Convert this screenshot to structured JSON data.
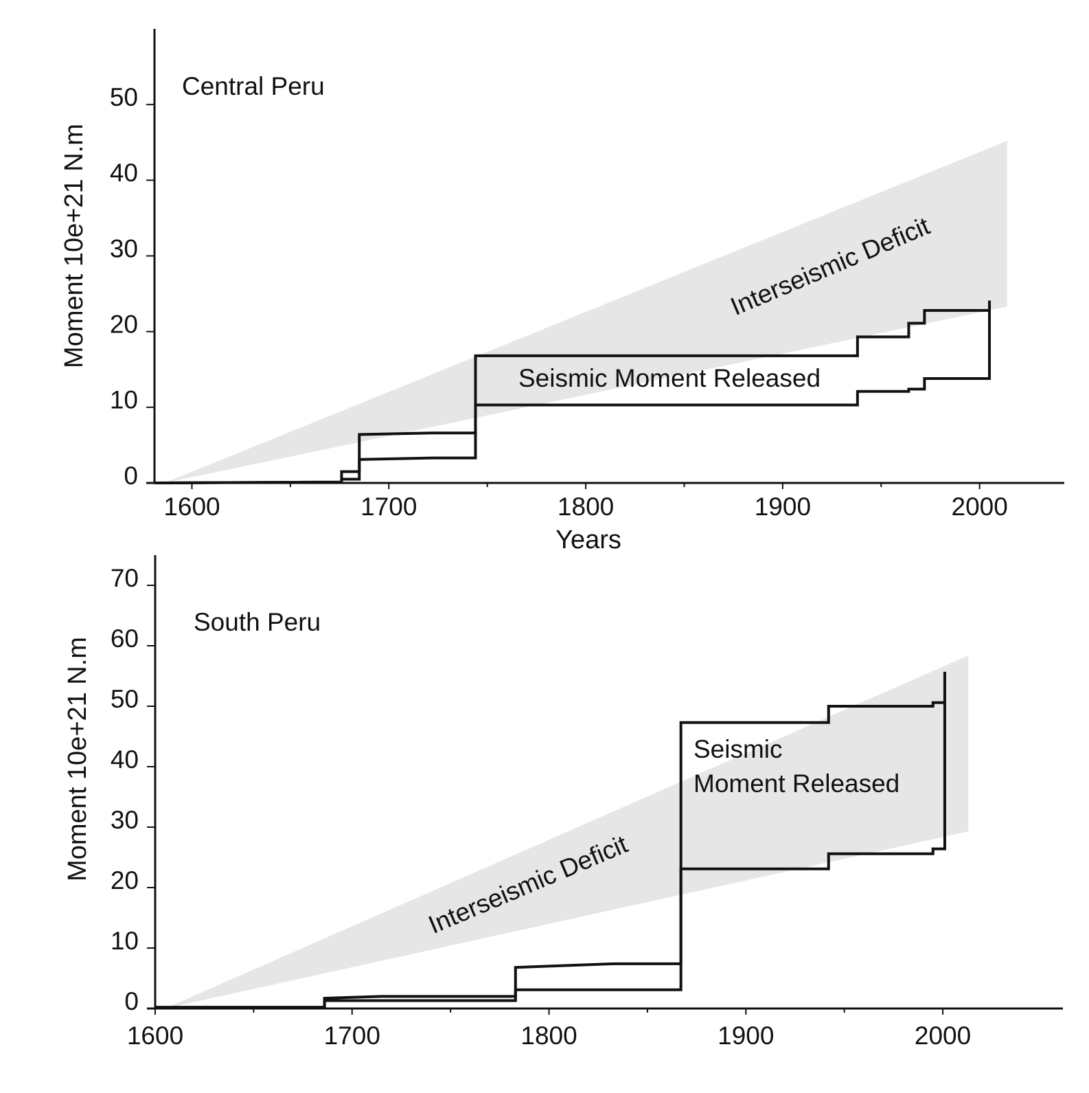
{
  "chart_data": [
    {
      "type": "line",
      "annotations": [
        "Central Peru",
        "Interseismic Deficit",
        "Seismic Moment Released"
      ],
      "xlabel": "Years",
      "ylabel": "Moment 10e+21 N.m",
      "xlim": [
        1581,
        2043
      ],
      "ylim": [
        0,
        60
      ],
      "xticks": [
        1600,
        1700,
        1800,
        1900,
        2000
      ],
      "xminorticks": [
        1650,
        1750,
        1850,
        1950
      ],
      "yticks": [
        0,
        10,
        20,
        30,
        40,
        50
      ],
      "band": {
        "color": "#e6e6e6",
        "x": [
          1586,
          2014
        ],
        "upper": [
          0,
          45.2
        ],
        "lower": [
          0,
          23.3
        ]
      },
      "series": [
        {
          "color": "#111111",
          "x": [
            1581,
            1662,
            1676,
            1676,
            1685,
            1685,
            1722,
            1744,
            1744,
            1938,
            1938,
            1964,
            1964,
            1972,
            1972,
            2005,
            2005
          ],
          "values": [
            0,
            0.1,
            0.1,
            1.5,
            1.5,
            6.4,
            6.6,
            6.6,
            16.8,
            16.8,
            19.3,
            19.3,
            21.1,
            21.1,
            22.8,
            22.8,
            24.1
          ]
        },
        {
          "color": "#111111",
          "x": [
            1581,
            1662,
            1676,
            1676,
            1685,
            1685,
            1722,
            1744,
            1744,
            1938,
            1938,
            1964,
            1964,
            1972,
            1972,
            2005,
            2005
          ],
          "values": [
            0,
            0.1,
            0.1,
            0.5,
            0.5,
            3.1,
            3.3,
            3.3,
            10.3,
            10.3,
            12.1,
            12.1,
            12.4,
            12.4,
            13.8,
            13.8,
            22.8
          ]
        }
      ]
    },
    {
      "type": "line",
      "annotations": [
        "South Peru",
        "Interseismic Deficit",
        "Seismic",
        "Moment Released"
      ],
      "ylabel": "Moment 10e+21 N.m",
      "xlim": [
        1600,
        2061
      ],
      "ylim": [
        0,
        75
      ],
      "xticks": [
        1600,
        1700,
        1800,
        1900,
        2000
      ],
      "xminorticks": [
        1650,
        1750,
        1850,
        1950
      ],
      "yticks": [
        0,
        10,
        20,
        30,
        40,
        50,
        60,
        70
      ],
      "band": {
        "color": "#e6e6e6",
        "x": [
          1605,
          2013
        ],
        "upper": [
          0,
          58.4
        ],
        "lower": [
          0,
          29.3
        ]
      },
      "series": [
        {
          "color": "#111111",
          "x": [
            1600,
            1686,
            1686,
            1715,
            1783,
            1783,
            1833,
            1867,
            1867,
            1942,
            1942,
            1995,
            1995,
            2001,
            2001
          ],
          "values": [
            0.2,
            0.2,
            1.7,
            2.0,
            2.0,
            6.8,
            7.4,
            7.4,
            47.3,
            47.3,
            50.0,
            50.0,
            50.6,
            50.6,
            55.7
          ]
        },
        {
          "color": "#111111",
          "x": [
            1600,
            1686,
            1686,
            1783,
            1783,
            1867,
            1867,
            1942,
            1942,
            1995,
            1995,
            2001,
            2001
          ],
          "values": [
            0.2,
            0.2,
            1.3,
            1.3,
            3.1,
            3.1,
            23.1,
            23.1,
            25.6,
            25.6,
            26.4,
            26.4,
            50.6
          ]
        }
      ]
    }
  ]
}
